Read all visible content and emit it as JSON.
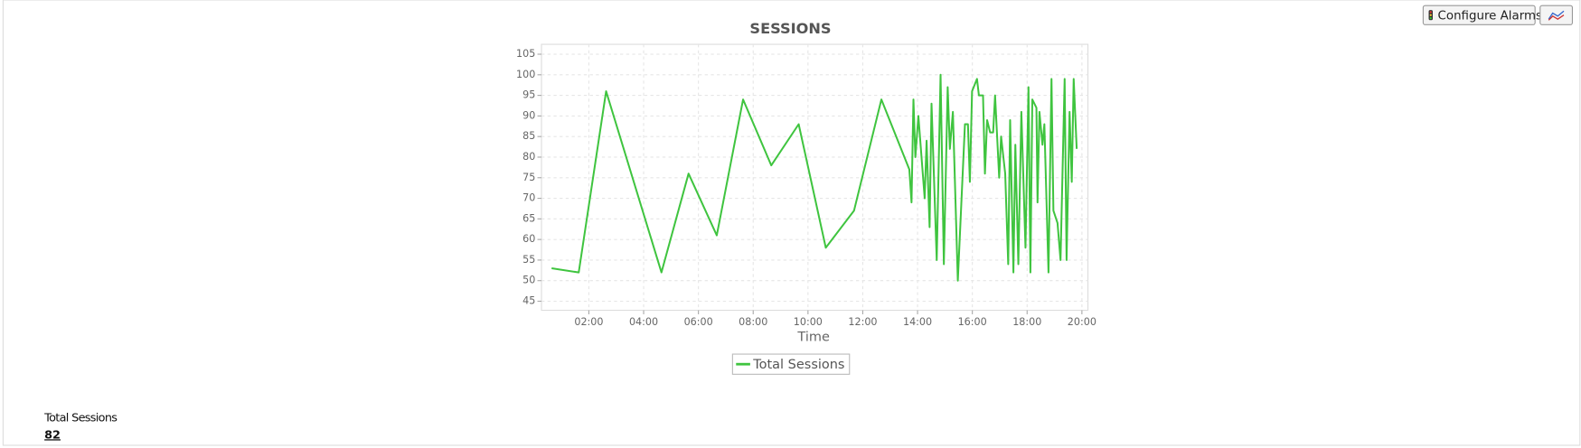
{
  "toolbar": {
    "configure_alarms": "Configure Alarms"
  },
  "chart_data": {
    "type": "line",
    "title": "SESSIONS",
    "x_label": "Time",
    "x": [
      0.64,
      1.63,
      2.63,
      4.65,
      5.64,
      6.67,
      7.63,
      8.66,
      9.66,
      10.65,
      11.68,
      12.68,
      13.7,
      13.78,
      13.85,
      13.92,
      14.03,
      14.26,
      14.33,
      14.44,
      14.51,
      14.7,
      14.84,
      14.96,
      15.1,
      15.18,
      15.29,
      15.47,
      15.73,
      15.84,
      15.91,
      15.99,
      16.17,
      16.24,
      16.39,
      16.46,
      16.54,
      16.65,
      16.76,
      16.83,
      16.98,
      17.05,
      17.2,
      17.31,
      17.38,
      17.5,
      17.57,
      17.68,
      17.79,
      17.94,
      18.05,
      18.12,
      18.19,
      18.34,
      18.38,
      18.45,
      18.56,
      18.63,
      18.78,
      18.89,
      18.96,
      19.11,
      19.22,
      19.37,
      19.44,
      19.55,
      19.63,
      19.7,
      19.81
    ],
    "series": [
      {
        "name": "Total Sessions",
        "color": "#3fc43f",
        "values": [
          53,
          52,
          96,
          52,
          76,
          61,
          94,
          78,
          88,
          58,
          67,
          94,
          77,
          69,
          94,
          80,
          90,
          70,
          84,
          63,
          93,
          55,
          100,
          54,
          97,
          82,
          91,
          50,
          88,
          88,
          74,
          96,
          99,
          95,
          95,
          76,
          89,
          86,
          86,
          95,
          75,
          85,
          76,
          54,
          89,
          52,
          83,
          54,
          91,
          58,
          97,
          52,
          94,
          92,
          69,
          91,
          83,
          88,
          52,
          99,
          67,
          64,
          55,
          99,
          55,
          91,
          74,
          99,
          82
        ]
      }
    ],
    "xlim": [
      0.27,
      20.22
    ],
    "ylim": [
      42.8,
      107.4
    ],
    "xticks": [
      {
        "value": 2,
        "label": "02:00"
      },
      {
        "value": 4,
        "label": "04:00"
      },
      {
        "value": 6,
        "label": "06:00"
      },
      {
        "value": 8,
        "label": "08:00"
      },
      {
        "value": 10,
        "label": "10:00"
      },
      {
        "value": 12,
        "label": "12:00"
      },
      {
        "value": 14,
        "label": "14:00"
      },
      {
        "value": 16,
        "label": "16:00"
      },
      {
        "value": 18,
        "label": "18:00"
      },
      {
        "value": 20,
        "label": "20:00"
      }
    ],
    "yticks": [
      45,
      50,
      55,
      60,
      65,
      70,
      75,
      80,
      85,
      90,
      95,
      100,
      105
    ],
    "grid": true
  },
  "summary": {
    "label": "Total Sessions",
    "value": "82"
  }
}
